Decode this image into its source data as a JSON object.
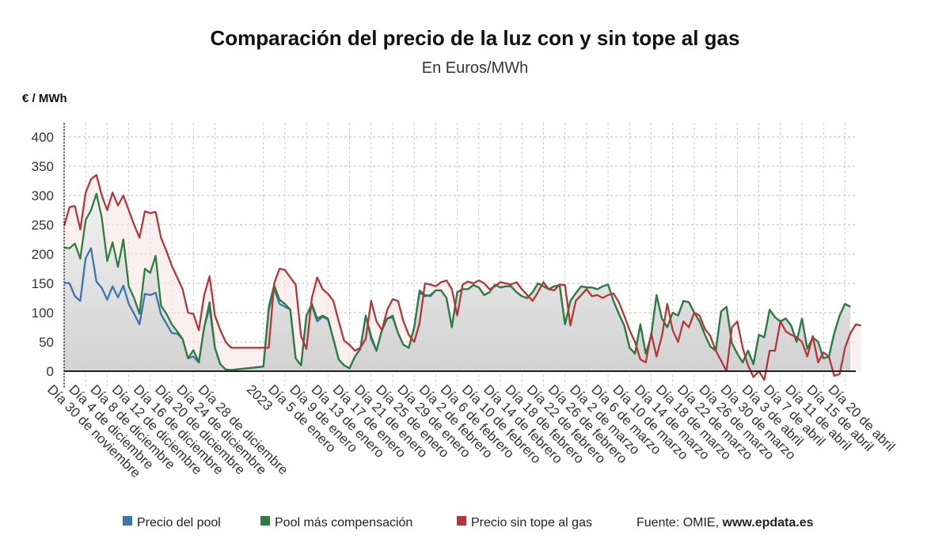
{
  "chart_data": {
    "type": "line",
    "title": "Comparación del precio de la luz con y sin tope al gas",
    "subtitle": "En Euros/MWh",
    "ylabel": "€ / MWh",
    "ylim": [
      -30,
      440
    ],
    "yticks": [
      0,
      50,
      100,
      150,
      200,
      250,
      300,
      350,
      400
    ],
    "grid": true,
    "legend_position": "bottom",
    "source_label": "Fuente: OMIE,",
    "source_site": "www.epdata.es",
    "xtick_labels": [
      {
        "x": 0,
        "label": "Día 30 de noviembre"
      },
      {
        "x": 4,
        "label": "Día 4 de diciembre"
      },
      {
        "x": 8,
        "label": "Día 8 de diciembre"
      },
      {
        "x": 12,
        "label": "Día 12 de diciembre"
      },
      {
        "x": 16,
        "label": "Día 16 de diciembre"
      },
      {
        "x": 20,
        "label": "Día 20 de diciembre"
      },
      {
        "x": 24,
        "label": "Día 24 de diciembre"
      },
      {
        "x": 28,
        "label": "Día 28 de diciembre"
      },
      {
        "x": 37,
        "label": "2023"
      },
      {
        "x": 41,
        "label": "Día 5 de enero"
      },
      {
        "x": 45,
        "label": "Día 9 de enero"
      },
      {
        "x": 49,
        "label": "Día 13 de enero"
      },
      {
        "x": 53,
        "label": "Día 17 de enero"
      },
      {
        "x": 57,
        "label": "Día 21 de enero"
      },
      {
        "x": 61,
        "label": "Día 25 de enero"
      },
      {
        "x": 65,
        "label": "Día 29 de enero"
      },
      {
        "x": 69,
        "label": "Día 2 de febrero"
      },
      {
        "x": 73,
        "label": "Día 6 de febrero"
      },
      {
        "x": 77,
        "label": "Día 10 de febrero"
      },
      {
        "x": 81,
        "label": "Día 14 de febrero"
      },
      {
        "x": 85,
        "label": "Día 18 de febrero"
      },
      {
        "x": 89,
        "label": "Día 22 de febrero"
      },
      {
        "x": 93,
        "label": "Día 26 de febrero"
      },
      {
        "x": 97,
        "label": "Día 2 de marzo"
      },
      {
        "x": 101,
        "label": "Día 6 de marzo"
      },
      {
        "x": 105,
        "label": "Día 10 de marzo"
      },
      {
        "x": 109,
        "label": "Día 14 de marzo"
      },
      {
        "x": 113,
        "label": "Día 18 de marzo"
      },
      {
        "x": 117,
        "label": "Día 22 de marzo"
      },
      {
        "x": 121,
        "label": "Día 26 de marzo"
      },
      {
        "x": 125,
        "label": "Día 30 de marzo"
      },
      {
        "x": 129,
        "label": "Día 3 de abril"
      },
      {
        "x": 133,
        "label": "Día 7 de abril"
      },
      {
        "x": 137,
        "label": "Día 11 de abril"
      },
      {
        "x": 141,
        "label": "Día 15 de abril"
      },
      {
        "x": 145,
        "label": "Día 20 de abril"
      }
    ],
    "series": [
      {
        "name": "Precio del pool",
        "color": "#3a75b0",
        "values": [
          151,
          150,
          128,
          120,
          193,
          210,
          153,
          142,
          122,
          145,
          126,
          146,
          115,
          98,
          80,
          132,
          130,
          134,
          97,
          81,
          65,
          64,
          55,
          22,
          25,
          15,
          75,
          108,
          40,
          12,
          3,
          2,
          3,
          4,
          5,
          6,
          7,
          8,
          105,
          140,
          115,
          110,
          105,
          22,
          10,
          95,
          112,
          85,
          93,
          88,
          55,
          20,
          10,
          5,
          25,
          38,
          95,
          55,
          35,
          70,
          90,
          92,
          65,
          45,
          40,
          75,
          138,
          130,
          128,
          138,
          138,
          125,
          75,
          135,
          140,
          140,
          147,
          143,
          130,
          135,
          148,
          143,
          145,
          145,
          135,
          128,
          125,
          135,
          150,
          145,
          140,
          145,
          147,
          80,
          120,
          133,
          145,
          143,
          143,
          140,
          145,
          148,
          120,
          98,
          78,
          40,
          30,
          80,
          30,
          60,
          130,
          90,
          75,
          100,
          95,
          120,
          118,
          100,
          85,
          62,
          42,
          35,
          102,
          110,
          48,
          30,
          15,
          35,
          12,
          62,
          58,
          105,
          92,
          85,
          90,
          78,
          50,
          90,
          38,
          58,
          50,
          22,
          25,
          65,
          95,
          115,
          110
        ],
        "x_end": 145
      },
      {
        "name": "Pool más compensación",
        "color": "#2e7d3e",
        "values": [
          211,
          210,
          218,
          192,
          258,
          275,
          303,
          262,
          188,
          220,
          178,
          225,
          145,
          125,
          98,
          175,
          168,
          197,
          112,
          98,
          80,
          68,
          55,
          22,
          36,
          15,
          75,
          118,
          40,
          12,
          3,
          2,
          3,
          4,
          5,
          6,
          7,
          8,
          110,
          147,
          122,
          115,
          105,
          22,
          10,
          95,
          115,
          90,
          95,
          90,
          55,
          20,
          10,
          5,
          25,
          38,
          95,
          60,
          35,
          70,
          90,
          95,
          65,
          45,
          40,
          75,
          135,
          128,
          130,
          138,
          138,
          125,
          75,
          135,
          140,
          140,
          147,
          143,
          130,
          135,
          148,
          143,
          145,
          145,
          135,
          128,
          125,
          135,
          150,
          145,
          140,
          145,
          147,
          80,
          120,
          133,
          145,
          143,
          143,
          140,
          145,
          148,
          120,
          98,
          78,
          40,
          30,
          80,
          30,
          60,
          130,
          90,
          75,
          100,
          95,
          120,
          118,
          100,
          85,
          62,
          42,
          35,
          102,
          110,
          48,
          30,
          15,
          35,
          12,
          62,
          58,
          105,
          92,
          85,
          90,
          78,
          50,
          90,
          38,
          58,
          50,
          22,
          25,
          65,
          95,
          115,
          110
        ],
        "x_end": 145
      },
      {
        "name": "Precio sin tope al gas",
        "color": "#b03838",
        "values": [
          248,
          280,
          282,
          242,
          305,
          328,
          335,
          300,
          275,
          305,
          283,
          300,
          275,
          250,
          228,
          273,
          270,
          272,
          228,
          205,
          180,
          160,
          140,
          100,
          98,
          70,
          130,
          162,
          95,
          70,
          50,
          40,
          40,
          40,
          40,
          40,
          40,
          40,
          40,
          150,
          175,
          173,
          160,
          148,
          60,
          38,
          125,
          160,
          140,
          132,
          120,
          85,
          52,
          45,
          35,
          40,
          55,
          120,
          85,
          70,
          105,
          123,
          120,
          85,
          62,
          50,
          82,
          150,
          148,
          145,
          152,
          155,
          140,
          95,
          148,
          153,
          150,
          155,
          150,
          140,
          145,
          152,
          150,
          148,
          152,
          140,
          130,
          120,
          135,
          152,
          140,
          138,
          148,
          147,
          78,
          120,
          130,
          140,
          128,
          130,
          125,
          130,
          133,
          118,
          95,
          70,
          50,
          20,
          15,
          65,
          25,
          60,
          115,
          70,
          50,
          85,
          75,
          100,
          95,
          72,
          60,
          35,
          18,
          0,
          75,
          85,
          40,
          10,
          -10,
          0,
          -15,
          35,
          35,
          85,
          68,
          62,
          58,
          50,
          25,
          60,
          15,
          32,
          25,
          -8,
          -5,
          40,
          65,
          80,
          78
        ],
        "x_end": 147
      }
    ]
  }
}
